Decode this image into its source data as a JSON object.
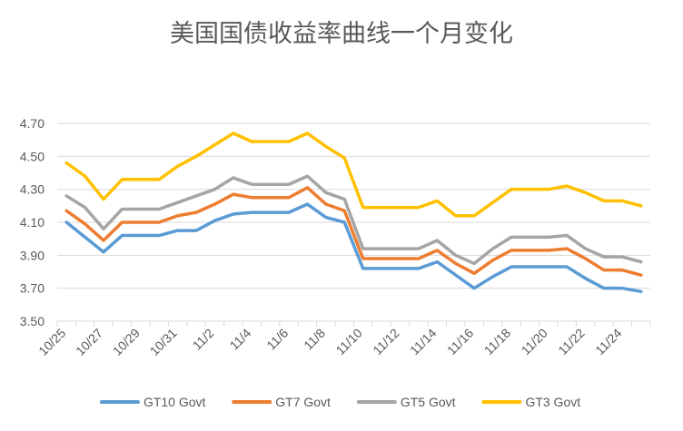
{
  "chart_data": {
    "type": "line",
    "title": "美国国债收益率曲线一个月变化",
    "xlabel": "",
    "ylabel": "",
    "ylim": [
      3.5,
      4.7
    ],
    "yticks": [
      "4.70",
      "4.50",
      "4.30",
      "4.10",
      "3.90",
      "3.70",
      "3.50"
    ],
    "grid": true,
    "legend_position": "bottom",
    "x_tick_labels": [
      "10/25",
      "10/27",
      "10/29",
      "10/31",
      "11/2",
      "11/4",
      "11/6",
      "11/8",
      "11/10",
      "11/12",
      "11/14",
      "11/16",
      "11/18",
      "11/20",
      "11/22",
      "11/24"
    ],
    "x": [
      "10/25",
      "10/26",
      "10/27",
      "10/28",
      "10/29",
      "10/30",
      "10/31",
      "11/1",
      "11/2",
      "11/3",
      "11/4",
      "11/5",
      "11/6",
      "11/7",
      "11/8",
      "11/9",
      "11/10",
      "11/11",
      "11/12",
      "11/13",
      "11/14",
      "11/15",
      "11/16",
      "11/17",
      "11/18",
      "11/19",
      "11/20",
      "11/21",
      "11/22",
      "11/23",
      "11/24",
      "11/25"
    ],
    "series": [
      {
        "name": "GT10 Govt",
        "color": "#5b9bd5",
        "values": [
          4.1,
          4.01,
          3.92,
          4.02,
          4.02,
          4.02,
          4.05,
          4.05,
          4.11,
          4.15,
          4.16,
          4.16,
          4.16,
          4.21,
          4.13,
          4.1,
          3.82,
          3.82,
          3.82,
          3.82,
          3.86,
          3.78,
          3.7,
          3.77,
          3.83,
          3.83,
          3.83,
          3.83,
          3.76,
          3.7,
          3.7,
          3.68
        ]
      },
      {
        "name": "GT7 Govt",
        "color": "#ed7d31",
        "values": [
          4.17,
          4.09,
          3.99,
          4.1,
          4.1,
          4.1,
          4.14,
          4.16,
          4.21,
          4.27,
          4.25,
          4.25,
          4.25,
          4.31,
          4.21,
          4.17,
          3.88,
          3.88,
          3.88,
          3.88,
          3.93,
          3.85,
          3.79,
          3.87,
          3.93,
          3.93,
          3.93,
          3.94,
          3.88,
          3.81,
          3.81,
          3.78
        ]
      },
      {
        "name": "GT5 Govt",
        "color": "#a5a5a5",
        "values": [
          4.26,
          4.19,
          4.06,
          4.18,
          4.18,
          4.18,
          4.22,
          4.26,
          4.3,
          4.37,
          4.33,
          4.33,
          4.33,
          4.38,
          4.28,
          4.24,
          3.94,
          3.94,
          3.94,
          3.94,
          3.99,
          3.9,
          3.85,
          3.94,
          4.01,
          4.01,
          4.01,
          4.02,
          3.94,
          3.89,
          3.89,
          3.86
        ]
      },
      {
        "name": "GT3 Govt",
        "color": "#ffc000",
        "values": [
          4.46,
          4.38,
          4.24,
          4.36,
          4.36,
          4.36,
          4.44,
          4.5,
          4.57,
          4.64,
          4.59,
          4.59,
          4.59,
          4.64,
          4.56,
          4.49,
          4.19,
          4.19,
          4.19,
          4.19,
          4.23,
          4.14,
          4.14,
          4.22,
          4.3,
          4.3,
          4.3,
          4.32,
          4.28,
          4.23,
          4.23,
          4.2
        ]
      }
    ]
  }
}
